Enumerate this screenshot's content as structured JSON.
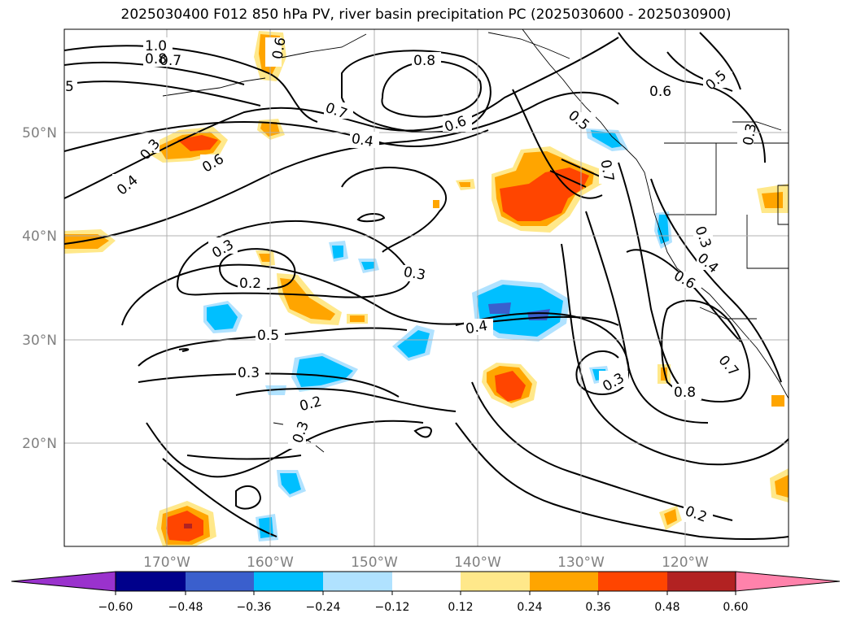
{
  "title": "2025030400 F012 850 hPa PV, river basin precipitation PC (2025030600 - 2025030900)",
  "lat_labels": [
    "50°N",
    "40°N",
    "30°N",
    "20°N"
  ],
  "lon_labels": [
    "170°W",
    "160°W",
    "150°W",
    "140°W",
    "130°W",
    "120°W"
  ],
  "colorbar": {
    "ticks": [
      "−0.60",
      "−0.48",
      "−0.36",
      "−0.24",
      "−0.12",
      "0.12",
      "0.24",
      "0.36",
      "0.48",
      "0.60"
    ],
    "colors": [
      "#9a32cd",
      "#00008b",
      "#3a5fcd",
      "#00bfff",
      "#b0e2ff",
      "#ffffff",
      "#ffe88a",
      "#ffa500",
      "#ff4500",
      "#b22222",
      "#ff82ab"
    ]
  },
  "contour_labels": [
    "1.0",
    "0.8",
    "0.7",
    "5",
    "0.8",
    "0.6",
    "0.5",
    "0.6",
    "0.5",
    "0.7",
    "0.4",
    "0.6",
    "0.3",
    "0.4",
    "0.3",
    "0.7",
    "0.3",
    "0.2",
    "0.5",
    "0.3",
    "0.2",
    "0.3",
    "0.4",
    "0.3",
    "0.4",
    "0.6",
    "0.3",
    "0.7",
    "0.8",
    "0.2",
    "0.3",
    "0.6"
  ],
  "colors": {
    "contour": "#000000",
    "grid": "#b0b0b0",
    "axis_label": "#808080"
  }
}
